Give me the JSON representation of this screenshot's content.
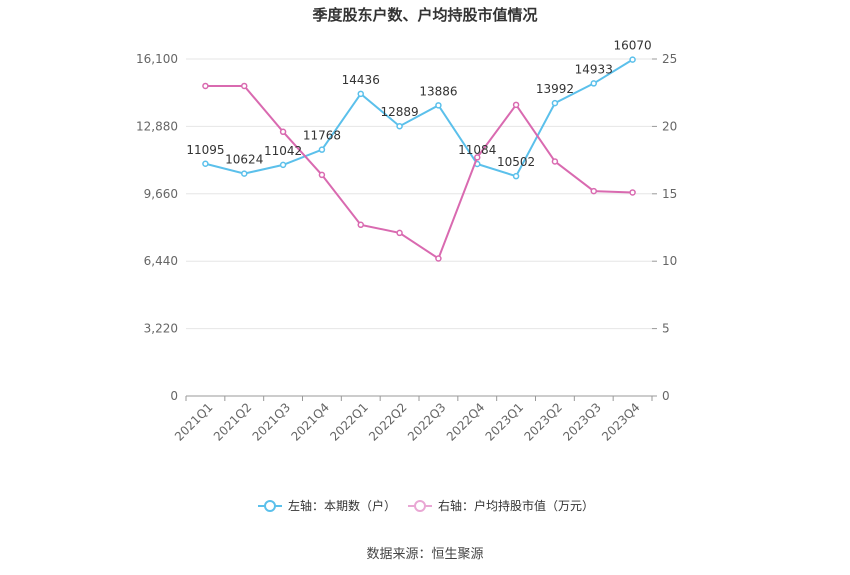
{
  "chart_data": {
    "type": "line",
    "title": "季度股东户数、户均持股市值情况",
    "categories": [
      "2021Q1",
      "2021Q2",
      "2021Q3",
      "2021Q4",
      "2022Q1",
      "2022Q2",
      "2022Q3",
      "2022Q4",
      "2023Q1",
      "2023Q2",
      "2023Q3",
      "2023Q4"
    ],
    "left_axis": {
      "ylim": [
        0,
        16100
      ],
      "ticks": [
        "0",
        "3,220",
        "6,440",
        "9,660",
        "12,880",
        "16,100"
      ]
    },
    "right_axis": {
      "ylim": [
        0,
        25
      ],
      "ticks": [
        "0",
        "5",
        "10",
        "15",
        "20",
        "25"
      ]
    },
    "series": [
      {
        "name": "左轴：本期数（户）",
        "axis": "left",
        "color": "#5bc0eb",
        "values": [
          11095,
          10624,
          11042,
          11768,
          14436,
          12889,
          13886,
          11084,
          10502,
          13992,
          14933,
          16070
        ],
        "labels": [
          "11095",
          "10624",
          "11042",
          "11768",
          "14436",
          "12889",
          "13886",
          "11084",
          "10502",
          "13992",
          "14933",
          "16070"
        ]
      },
      {
        "name": "右轴：户均持股市值（万元）",
        "axis": "right",
        "color": "#d96ab0",
        "values": [
          23.0,
          23.0,
          19.6,
          16.4,
          12.7,
          12.1,
          10.2,
          17.7,
          21.6,
          17.4,
          15.2,
          15.1
        ]
      }
    ],
    "legend_position": "bottom",
    "grid": true
  },
  "source": "数据来源：恒生聚源"
}
